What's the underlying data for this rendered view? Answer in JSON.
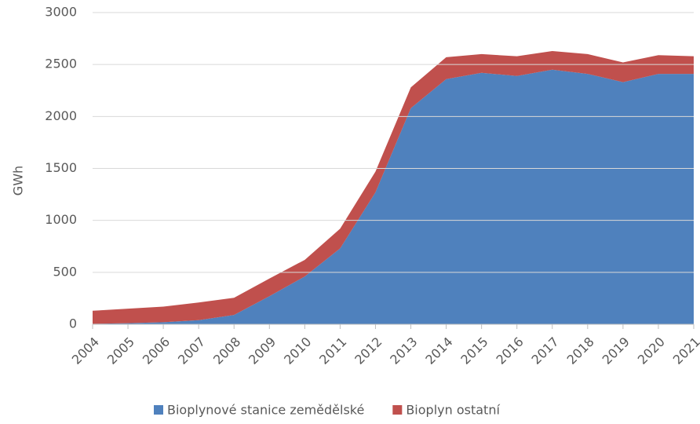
{
  "chart_data": {
    "type": "stacked_area",
    "y_label": "GWh",
    "categories": [
      "2004",
      "2005",
      "2006",
      "2007",
      "2008",
      "2009",
      "2010",
      "2011",
      "2012",
      "2013",
      "2014",
      "2015",
      "2016",
      "2017",
      "2018",
      "2019",
      "2020",
      "2021"
    ],
    "series": [
      {
        "name": "Bioplynové stanice zemědělské",
        "color": "#4f81bd",
        "values": [
          5,
          10,
          20,
          40,
          90,
          270,
          460,
          730,
          1270,
          2080,
          2360,
          2420,
          2390,
          2450,
          2410,
          2330,
          2410,
          2410
        ]
      },
      {
        "name": "Bioplyn ostatní",
        "color": "#c0504d",
        "values": [
          125,
          140,
          150,
          170,
          165,
          170,
          160,
          190,
          200,
          200,
          210,
          180,
          190,
          180,
          190,
          190,
          180,
          170
        ]
      }
    ],
    "ylim": [
      0,
      3000
    ],
    "yticks": [
      0,
      500,
      1000,
      1500,
      2000,
      2500,
      3000
    ],
    "grid": true,
    "legend": "bottom"
  }
}
